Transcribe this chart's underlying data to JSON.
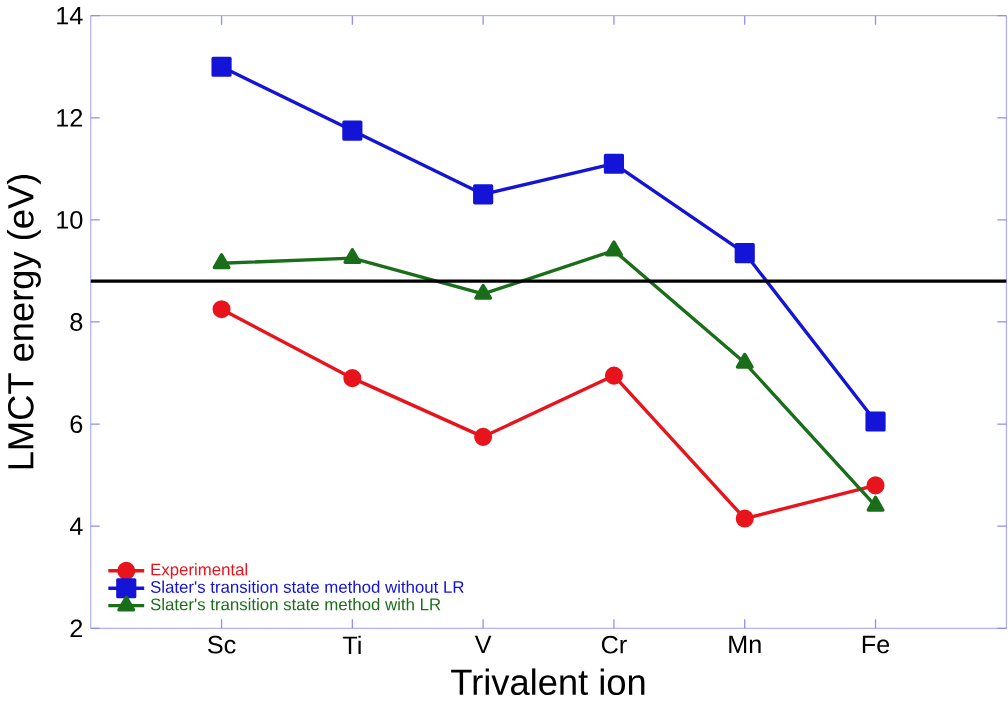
{
  "chart_data": {
    "type": "line",
    "xlabel": "Trivalent ion",
    "ylabel": "LMCT energy (eV)",
    "categories": [
      "Sc",
      "Ti",
      "V",
      "Cr",
      "Mn",
      "Fe"
    ],
    "series": [
      {
        "name": "Experimental",
        "color": "#e8141c",
        "marker": "circle",
        "values": [
          8.25,
          6.9,
          5.75,
          6.95,
          4.15,
          4.8
        ]
      },
      {
        "name": "Slater's transition state method without LR",
        "color": "#1414d8",
        "marker": "square",
        "values": [
          13.0,
          11.75,
          10.5,
          11.1,
          9.35,
          6.05
        ]
      },
      {
        "name": "Slater's transition state method with LR",
        "color": "#1a6e1a",
        "marker": "triangle",
        "values": [
          9.15,
          9.25,
          8.55,
          9.4,
          7.2,
          4.4
        ]
      }
    ],
    "ylim": [
      2,
      14
    ],
    "yticks": [
      2,
      4,
      6,
      8,
      10,
      12,
      14
    ],
    "ref_lines": [
      {
        "axis": "y",
        "value": 8.8,
        "color": "#000000"
      }
    ],
    "legend": "bottom left",
    "grid": false
  }
}
